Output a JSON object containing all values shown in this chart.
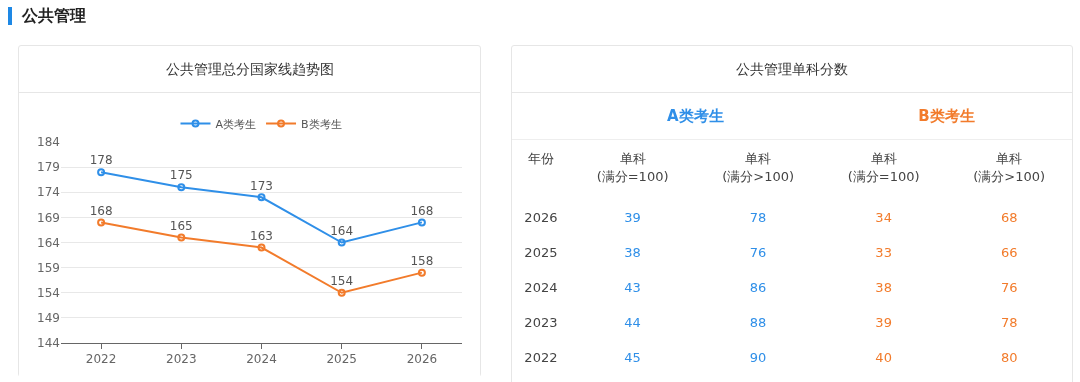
{
  "chart_data": [
    {
      "type": "line",
      "title": "公共管理总分国家线趋势图",
      "annotations": [
        "公共管理"
      ],
      "categories": [
        "2022",
        "2023",
        "2024",
        "2025",
        "2026"
      ],
      "series": [
        {
          "name": "A类考生",
          "color": "#2f8fe8",
          "values": [
            178,
            175,
            173,
            164,
            168
          ]
        },
        {
          "name": "B类考生",
          "color": "#f27b2b",
          "values": [
            168,
            165,
            163,
            154,
            158
          ]
        }
      ],
      "ylim": [
        144,
        184
      ],
      "yticks": [
        144,
        149,
        154,
        159,
        164,
        169,
        174,
        179,
        184
      ],
      "grid": "y",
      "legend": "top",
      "marker": "circle",
      "data_labels": true
    },
    {
      "type": "heatmap",
      "title": "公共管理单科分数",
      "ylabel": "年份",
      "annotations": [
        "A类考生",
        "B类考生"
      ],
      "categories": [
        "单科\n(满分=100)",
        "单科\n(满分>100)",
        "单科\n(满分=100)",
        "单科\n(满分>100)"
      ],
      "colors": [
        "#2f8fe8",
        "#2f8fe8",
        "#f27b2b",
        "#f27b2b"
      ],
      "y_categories": [
        "2026",
        "2025",
        "2024",
        "2023",
        "2022"
      ],
      "cells": [
        [
          39,
          78,
          34,
          68
        ],
        [
          38,
          76,
          33,
          66
        ],
        [
          43,
          86,
          38,
          76
        ],
        [
          44,
          88,
          39,
          78
        ],
        [
          45,
          90,
          40,
          80
        ]
      ],
      "data_labels": true
    }
  ]
}
